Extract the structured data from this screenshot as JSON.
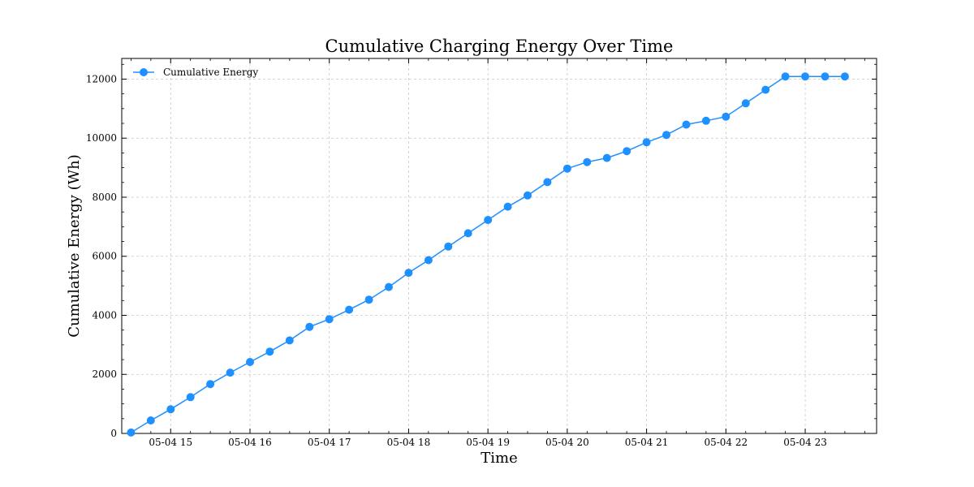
{
  "chart_data": {
    "type": "line",
    "title": "Cumulative Charging Energy Over Time",
    "xlabel": "Time",
    "ylabel": "Cumulative Energy (Wh)",
    "ylim": [
      0,
      12700
    ],
    "xlim": [
      "05-04 14:23",
      "05-04 23:54"
    ],
    "grid": true,
    "legend_position": "top-left",
    "x_ticks": [
      "05-04 15",
      "05-04 16",
      "05-04 17",
      "05-04 18",
      "05-04 19",
      "05-04 20",
      "05-04 21",
      "05-04 22",
      "05-04 23"
    ],
    "y_ticks": [
      "0",
      "2000",
      "4000",
      "6000",
      "8000",
      "10000",
      "12000"
    ],
    "series": [
      {
        "name": "Cumulative Energy",
        "color": "#1e90ff",
        "marker": "circle",
        "x": [
          "05-04 14:30",
          "05-04 14:45",
          "05-04 15:00",
          "05-04 15:15",
          "05-04 15:30",
          "05-04 15:45",
          "05-04 16:00",
          "05-04 16:15",
          "05-04 16:30",
          "05-04 16:45",
          "05-04 17:00",
          "05-04 17:15",
          "05-04 17:30",
          "05-04 17:45",
          "05-04 18:00",
          "05-04 18:15",
          "05-04 18:30",
          "05-04 18:45",
          "05-04 19:00",
          "05-04 19:15",
          "05-04 19:30",
          "05-04 19:45",
          "05-04 20:00",
          "05-04 20:15",
          "05-04 20:30",
          "05-04 20:45",
          "05-04 21:00",
          "05-04 21:15",
          "05-04 21:30",
          "05-04 21:45",
          "05-04 22:00",
          "05-04 22:15",
          "05-04 22:30",
          "05-04 22:45",
          "05-04 23:00",
          "05-04 23:15",
          "05-04 23:30"
        ],
        "values": [
          30,
          440,
          820,
          1230,
          1670,
          2060,
          2420,
          2770,
          3150,
          3610,
          3870,
          4190,
          4530,
          4960,
          5440,
          5870,
          6330,
          6780,
          7230,
          7680,
          8060,
          8510,
          8970,
          9190,
          9330,
          9560,
          9860,
          10110,
          10460,
          10590,
          10730,
          11180,
          11640,
          12090,
          12090,
          12090,
          12090
        ]
      }
    ]
  }
}
